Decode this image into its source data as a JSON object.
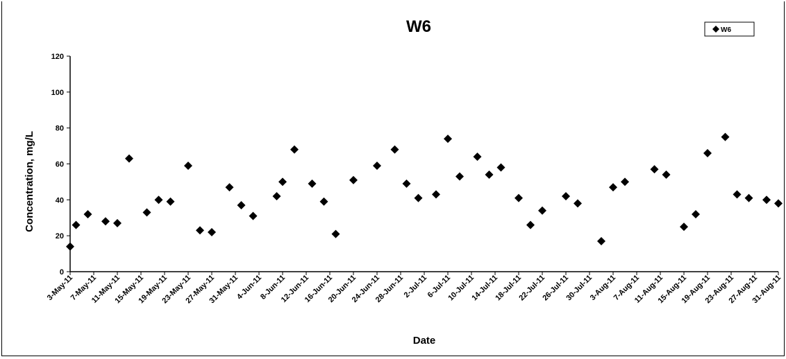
{
  "chart_data": {
    "type": "scatter",
    "title": "W6",
    "xlabel": "Date",
    "ylabel": "Concentration, mg/L",
    "ylim": [
      0,
      120
    ],
    "yticks": [
      0,
      20,
      40,
      60,
      80,
      100,
      120
    ],
    "xlim": [
      "2011-05-03",
      "2011-08-31"
    ],
    "xtick_labels": [
      "3-May-11",
      "7-May-11",
      "11-May-11",
      "15-May-11",
      "19-May-11",
      "23-May-11",
      "27-May-11",
      "31-May-11",
      "4-Jun-11",
      "8-Jun-11",
      "12-Jun-11",
      "16-Jun-11",
      "20-Jun-11",
      "24-Jun-11",
      "28-Jun-11",
      "2-Jul-11",
      "6-Jul-11",
      "10-Jul-11",
      "14-Jul-11",
      "18-Jul-11",
      "22-Jul-11",
      "26-Jul-11",
      "30-Jul-11",
      "3-Aug-11",
      "7-Aug-11",
      "11-Aug-11",
      "15-Aug-11",
      "19-Aug-11",
      "23-Aug-11",
      "27-Aug-11",
      "31-Aug-11"
    ],
    "grid": false,
    "legend_position": "top-right",
    "marker": "diamond",
    "marker_color": "#000000",
    "series": [
      {
        "name": "W6",
        "points": [
          {
            "x": "2011-05-03",
            "y": 14
          },
          {
            "x": "2011-05-04",
            "y": 26
          },
          {
            "x": "2011-05-06",
            "y": 32
          },
          {
            "x": "2011-05-09",
            "y": 28
          },
          {
            "x": "2011-05-11",
            "y": 27
          },
          {
            "x": "2011-05-13",
            "y": 63
          },
          {
            "x": "2011-05-16",
            "y": 33
          },
          {
            "x": "2011-05-18",
            "y": 40
          },
          {
            "x": "2011-05-20",
            "y": 39
          },
          {
            "x": "2011-05-23",
            "y": 59
          },
          {
            "x": "2011-05-25",
            "y": 23
          },
          {
            "x": "2011-05-27",
            "y": 22
          },
          {
            "x": "2011-05-30",
            "y": 47
          },
          {
            "x": "2011-06-01",
            "y": 37
          },
          {
            "x": "2011-06-03",
            "y": 31
          },
          {
            "x": "2011-06-07",
            "y": 42
          },
          {
            "x": "2011-06-08",
            "y": 50
          },
          {
            "x": "2011-06-10",
            "y": 68
          },
          {
            "x": "2011-06-13",
            "y": 49
          },
          {
            "x": "2011-06-15",
            "y": 39
          },
          {
            "x": "2011-06-17",
            "y": 21
          },
          {
            "x": "2011-06-20",
            "y": 51
          },
          {
            "x": "2011-06-24",
            "y": 59
          },
          {
            "x": "2011-06-27",
            "y": 68
          },
          {
            "x": "2011-06-29",
            "y": 49
          },
          {
            "x": "2011-07-01",
            "y": 41
          },
          {
            "x": "2011-07-04",
            "y": 43
          },
          {
            "x": "2011-07-06",
            "y": 74
          },
          {
            "x": "2011-07-08",
            "y": 53
          },
          {
            "x": "2011-07-11",
            "y": 64
          },
          {
            "x": "2011-07-13",
            "y": 54
          },
          {
            "x": "2011-07-15",
            "y": 58
          },
          {
            "x": "2011-07-18",
            "y": 41
          },
          {
            "x": "2011-07-20",
            "y": 26
          },
          {
            "x": "2011-07-22",
            "y": 34
          },
          {
            "x": "2011-07-26",
            "y": 42
          },
          {
            "x": "2011-07-28",
            "y": 38
          },
          {
            "x": "2011-08-01",
            "y": 17
          },
          {
            "x": "2011-08-03",
            "y": 47
          },
          {
            "x": "2011-08-05",
            "y": 50
          },
          {
            "x": "2011-08-10",
            "y": 57
          },
          {
            "x": "2011-08-12",
            "y": 54
          },
          {
            "x": "2011-08-15",
            "y": 25
          },
          {
            "x": "2011-08-17",
            "y": 32
          },
          {
            "x": "2011-08-19",
            "y": 66
          },
          {
            "x": "2011-08-22",
            "y": 75
          },
          {
            "x": "2011-08-24",
            "y": 43
          },
          {
            "x": "2011-08-26",
            "y": 41
          },
          {
            "x": "2011-08-29",
            "y": 40
          },
          {
            "x": "2011-08-31",
            "y": 38
          }
        ]
      }
    ]
  }
}
